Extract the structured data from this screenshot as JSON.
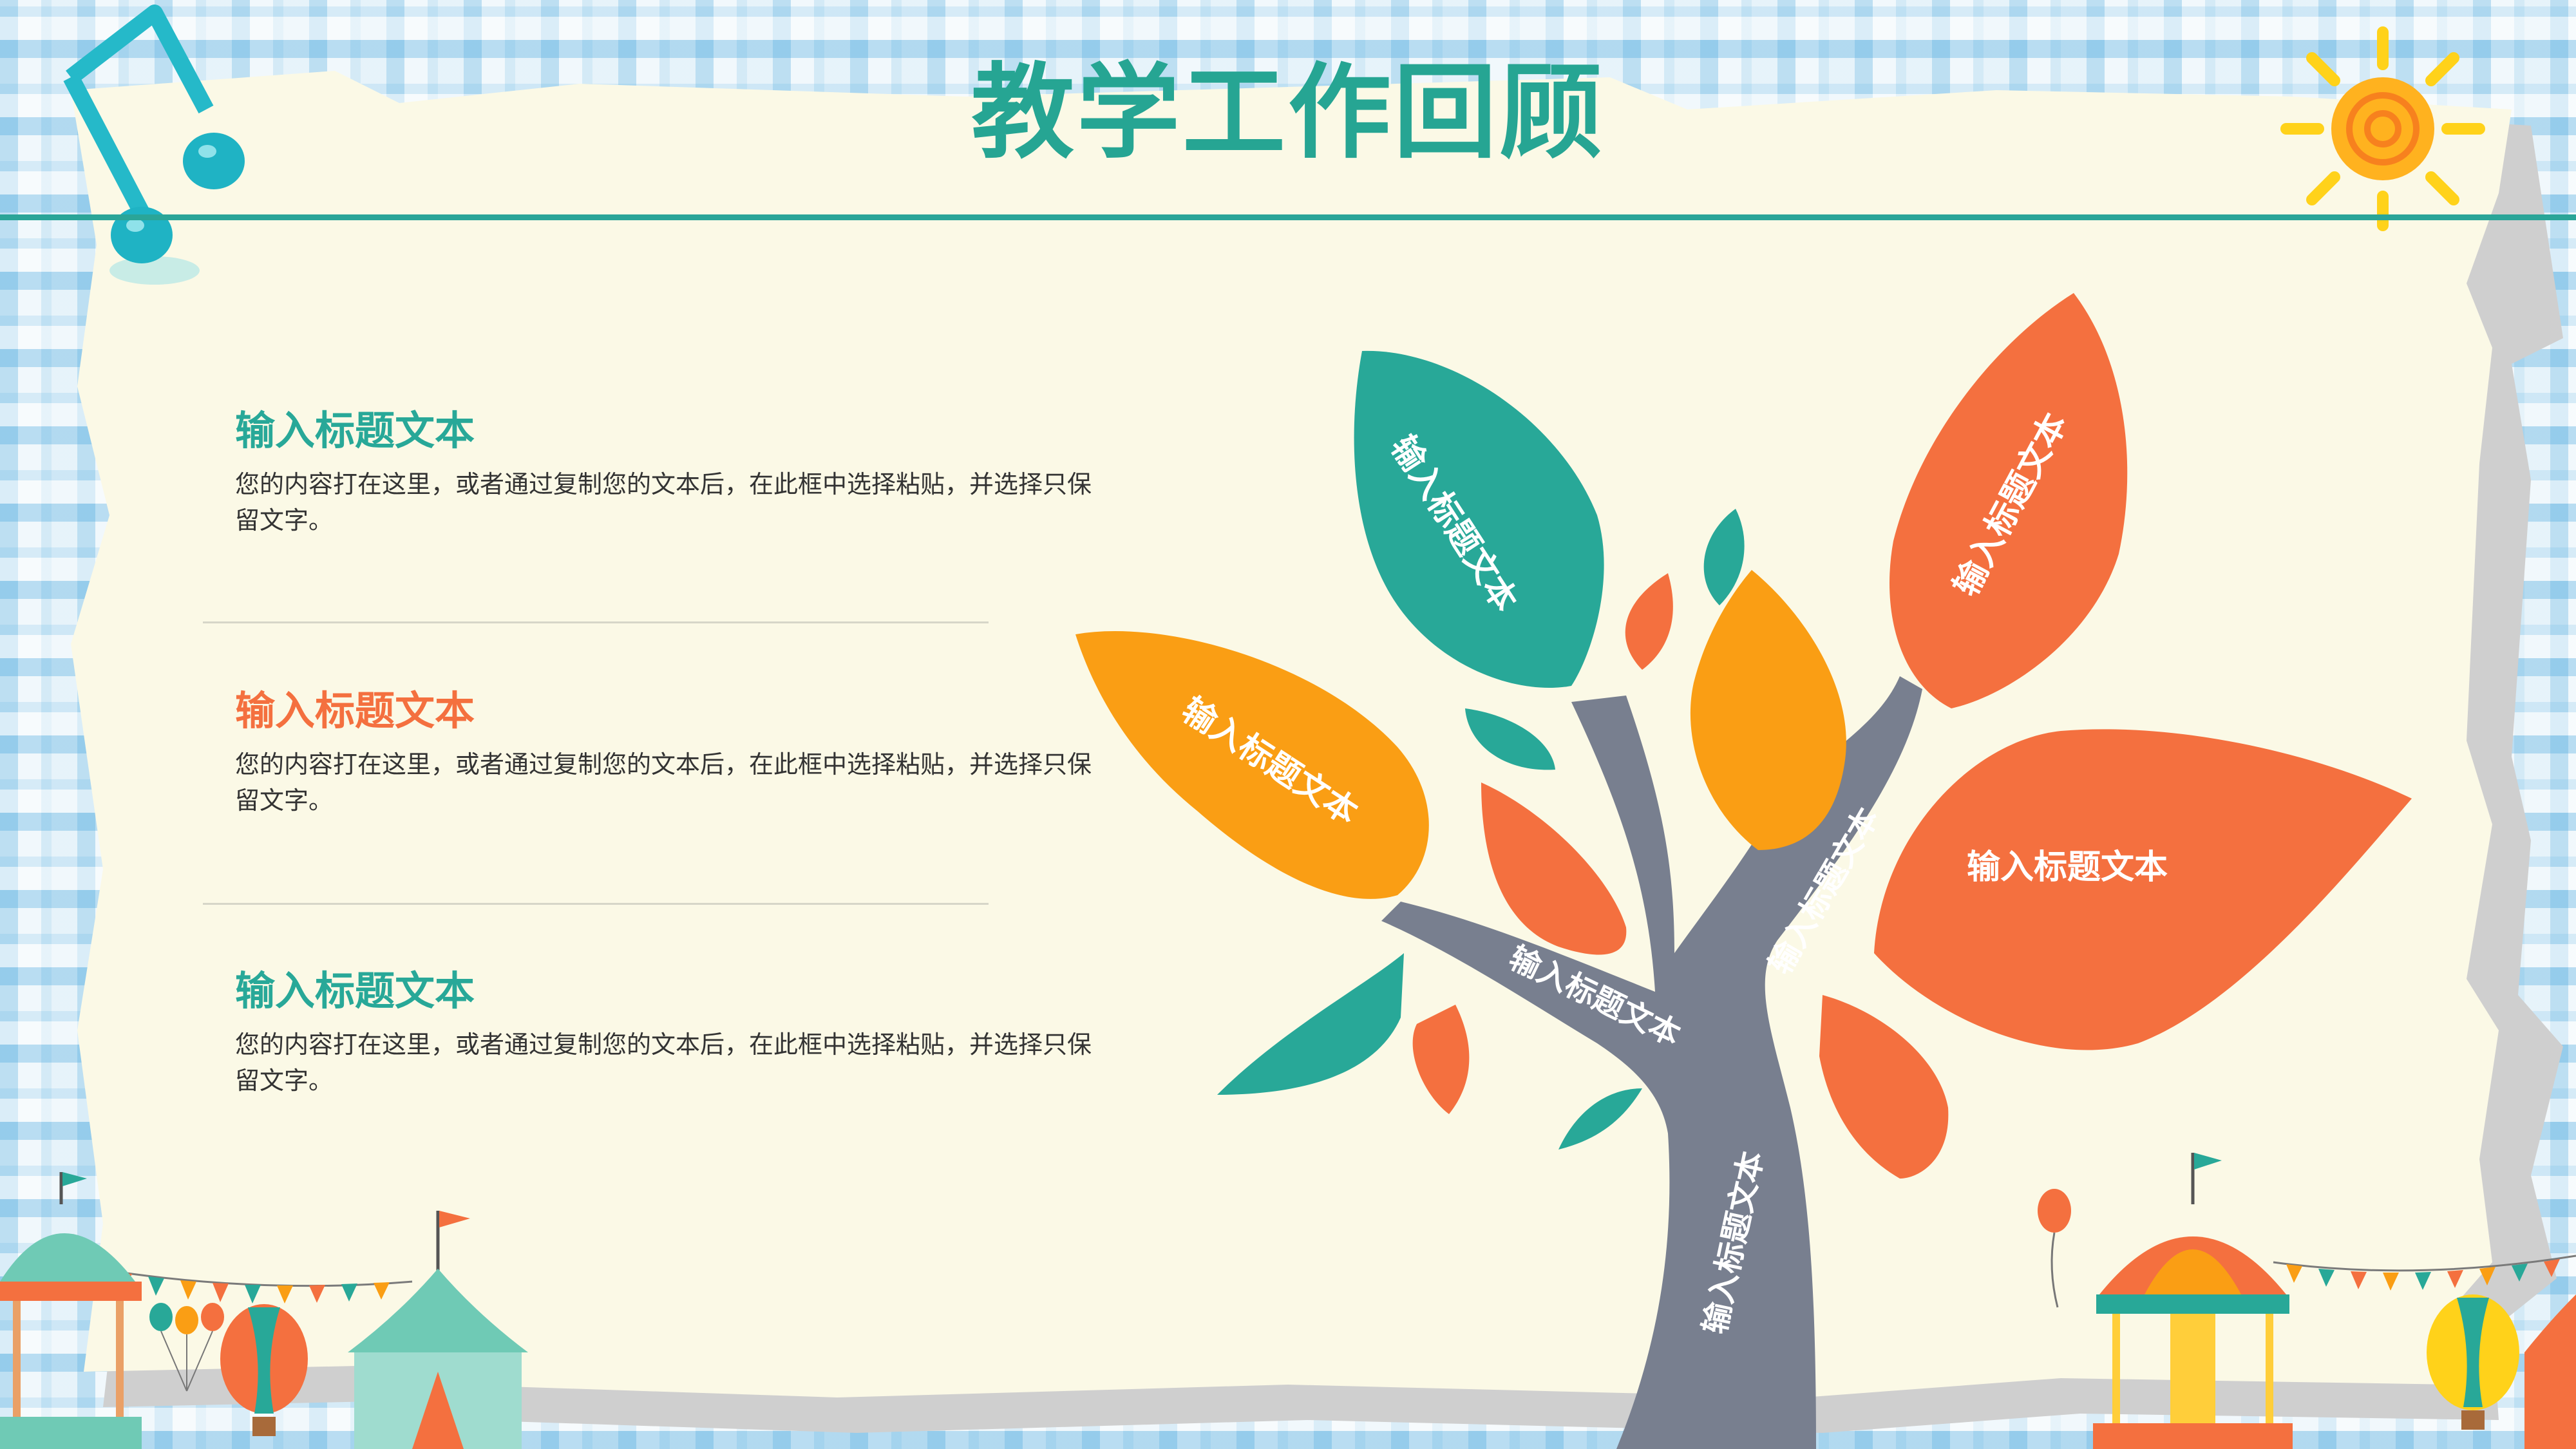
{
  "title": "教学工作回顾",
  "colors": {
    "teal": "#28a898",
    "orange": "#f4703f",
    "amber": "#fa9e14",
    "trunk": "#787f8f",
    "paper": "#fbf9e6"
  },
  "items": [
    {
      "heading": "输入标题文本",
      "body": "您的内容打在这里，或者通过复制您的文本后，在此框中选择粘贴，并选择只保留文字。",
      "color": "#28a898"
    },
    {
      "heading": "输入标题文本",
      "body": "您的内容打在这里，或者通过复制您的文本后，在此框中选择粘贴，并选择只保留文字。",
      "color": "#f4703f"
    },
    {
      "heading": "输入标题文本",
      "body": "您的内容打在这里，或者通过复制您的文本后，在此框中选择粘贴，并选择只保留文字。",
      "color": "#28a898"
    }
  ],
  "tree": {
    "leaf_labels": [
      "输入标题文本",
      "输入标题文本",
      "输入标题文本",
      "输入标题文本"
    ],
    "branch_labels": [
      "输入标题文本",
      "输入标题文本",
      "输入标题文本"
    ]
  },
  "decorations": [
    "music-note-icon",
    "sun-icon",
    "carousel-icon",
    "circus-tent-icon",
    "hot-air-balloon-icon",
    "balloon-icon",
    "bunting-flags"
  ]
}
